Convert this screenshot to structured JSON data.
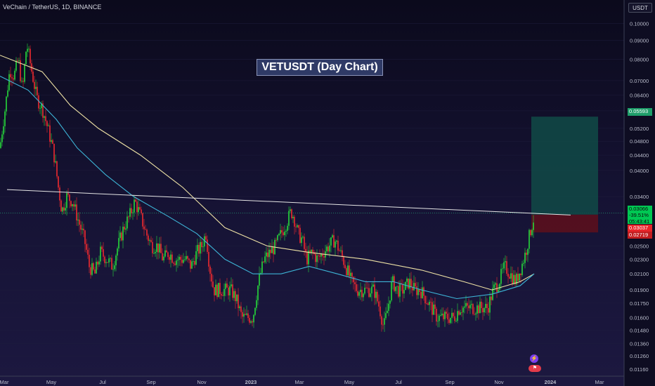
{
  "header": {
    "symbol_title": "VeChain / TetherUS, 1D, BINANCE",
    "currency": "USDT"
  },
  "annotation": {
    "label": "VETUSDT (Day Chart)"
  },
  "price_tags": {
    "target": "0.05593",
    "current_price": "0.03066",
    "current_change": "-39.51%",
    "current_countdown": "05:43:41",
    "entry": "0.03037",
    "stop": "0.02719"
  },
  "badges": {
    "event_icon": "lightning-icon",
    "flag_icon": "flag-icon"
  },
  "colors": {
    "background_top": "#0b0a1c",
    "background_bottom": "#1c1840",
    "candle_up": "#26d93b",
    "candle_down": "#ef2a2f",
    "ma_long": "#efe3a6",
    "ma_short": "#3db4d6",
    "trendline": "#e6e6e6",
    "target_zone": "#114a46",
    "stop_zone": "#5a0f1d"
  },
  "chart_data": {
    "type": "candlestick",
    "title": "VeChain / TetherUS, 1D, BINANCE",
    "y_scale": "log",
    "ylim": [
      0.0112,
      0.106
    ],
    "y_ticks": [
      "0.10000",
      "0.09000",
      "0.08000",
      "0.07000",
      "0.06400",
      "0.05800",
      "0.05200",
      "0.04800",
      "0.04400",
      "0.04000",
      "0.03400",
      "0.03060",
      "0.02500",
      "0.02300",
      "0.02100",
      "0.01900",
      "0.01750",
      "0.01600",
      "0.01480",
      "0.01360",
      "0.01260",
      "0.01160"
    ],
    "x_ticks": [
      "Mar",
      "May",
      "Jul",
      "Sep",
      "Nov",
      "2023",
      "Mar",
      "May",
      "Jul",
      "Sep",
      "Nov",
      "2024",
      "Mar"
    ],
    "price_path": [
      [
        0,
        0.046
      ],
      [
        8,
        0.06
      ],
      [
        14,
        0.075
      ],
      [
        20,
        0.072
      ],
      [
        26,
        0.08
      ],
      [
        32,
        0.065
      ],
      [
        38,
        0.088
      ],
      [
        44,
        0.076
      ],
      [
        52,
        0.063
      ],
      [
        60,
        0.059
      ],
      [
        68,
        0.052
      ],
      [
        76,
        0.045
      ],
      [
        83,
        0.036
      ],
      [
        88,
        0.031
      ],
      [
        95,
        0.034
      ],
      [
        103,
        0.033
      ],
      [
        112,
        0.029
      ],
      [
        120,
        0.026
      ],
      [
        127,
        0.022
      ],
      [
        135,
        0.021
      ],
      [
        143,
        0.024
      ],
      [
        152,
        0.023
      ],
      [
        160,
        0.022
      ],
      [
        168,
        0.025
      ],
      [
        176,
        0.028
      ],
      [
        184,
        0.03
      ],
      [
        192,
        0.033
      ],
      [
        200,
        0.03
      ],
      [
        208,
        0.027
      ],
      [
        216,
        0.025
      ],
      [
        224,
        0.025
      ],
      [
        232,
        0.023
      ],
      [
        240,
        0.024
      ],
      [
        248,
        0.023
      ],
      [
        256,
        0.023
      ],
      [
        264,
        0.023
      ],
      [
        272,
        0.022
      ],
      [
        280,
        0.024
      ],
      [
        287,
        0.025
      ],
      [
        293,
        0.027
      ],
      [
        298,
        0.022
      ],
      [
        304,
        0.019
      ],
      [
        312,
        0.019
      ],
      [
        320,
        0.019
      ],
      [
        328,
        0.019
      ],
      [
        336,
        0.018
      ],
      [
        344,
        0.016
      ],
      [
        352,
        0.016
      ],
      [
        360,
        0.016
      ],
      [
        368,
        0.02
      ],
      [
        376,
        0.023
      ],
      [
        384,
        0.024
      ],
      [
        392,
        0.025
      ],
      [
        400,
        0.027
      ],
      [
        408,
        0.029
      ],
      [
        414,
        0.031
      ],
      [
        418,
        0.03
      ],
      [
        424,
        0.027
      ],
      [
        430,
        0.026
      ],
      [
        436,
        0.023
      ],
      [
        444,
        0.024
      ],
      [
        452,
        0.023
      ],
      [
        460,
        0.024
      ],
      [
        468,
        0.025
      ],
      [
        476,
        0.026
      ],
      [
        484,
        0.024
      ],
      [
        492,
        0.022
      ],
      [
        500,
        0.02
      ],
      [
        508,
        0.019
      ],
      [
        516,
        0.019
      ],
      [
        524,
        0.019
      ],
      [
        532,
        0.019
      ],
      [
        540,
        0.017
      ],
      [
        546,
        0.015
      ],
      [
        552,
        0.017
      ],
      [
        558,
        0.02
      ],
      [
        566,
        0.019
      ],
      [
        574,
        0.019
      ],
      [
        582,
        0.02
      ],
      [
        590,
        0.019
      ],
      [
        598,
        0.019
      ],
      [
        606,
        0.018
      ],
      [
        614,
        0.017
      ],
      [
        622,
        0.016
      ],
      [
        630,
        0.016
      ],
      [
        638,
        0.016
      ],
      [
        646,
        0.016
      ],
      [
        654,
        0.017
      ],
      [
        662,
        0.017
      ],
      [
        670,
        0.017
      ],
      [
        678,
        0.017
      ],
      [
        686,
        0.017
      ],
      [
        694,
        0.017
      ],
      [
        702,
        0.019
      ],
      [
        710,
        0.02
      ],
      [
        718,
        0.022
      ],
      [
        726,
        0.021
      ],
      [
        734,
        0.02
      ],
      [
        742,
        0.022
      ],
      [
        748,
        0.024
      ],
      [
        754,
        0.027
      ],
      [
        760,
        0.03
      ]
    ],
    "series": [
      {
        "name": "",
        "points": [
          [
            0,
            0.082
          ],
          [
            60,
            0.074
          ],
          [
            100,
            0.06
          ],
          [
            140,
            0.052
          ],
          [
            200,
            0.044
          ],
          [
            260,
            0.036
          ],
          [
            320,
            0.028
          ],
          [
            380,
            0.025
          ],
          [
            440,
            0.024
          ],
          [
            520,
            0.023
          ],
          [
            600,
            0.0215
          ],
          [
            660,
            0.02
          ],
          [
            700,
            0.019
          ],
          [
            740,
            0.02
          ],
          [
            760,
            0.021
          ]
        ]
      },
      {
        "name": "",
        "points": [
          [
            0,
            0.072
          ],
          [
            40,
            0.066
          ],
          [
            80,
            0.055
          ],
          [
            110,
            0.046
          ],
          [
            150,
            0.039
          ],
          [
            190,
            0.034
          ],
          [
            240,
            0.03
          ],
          [
            280,
            0.027
          ],
          [
            320,
            0.023
          ],
          [
            360,
            0.021
          ],
          [
            400,
            0.021
          ],
          [
            440,
            0.022
          ],
          [
            480,
            0.021
          ],
          [
            520,
            0.02
          ],
          [
            560,
            0.02
          ],
          [
            600,
            0.019
          ],
          [
            650,
            0.018
          ],
          [
            700,
            0.0185
          ],
          [
            740,
            0.0195
          ],
          [
            760,
            0.021
          ]
        ]
      }
    ],
    "trendline": [
      [
        10,
        0.0355
      ],
      [
        812,
        0.0303
      ]
    ],
    "position": {
      "x_start": 756,
      "x_end": 851,
      "target": 0.05593,
      "entry": 0.03037,
      "stop": 0.02719
    }
  }
}
